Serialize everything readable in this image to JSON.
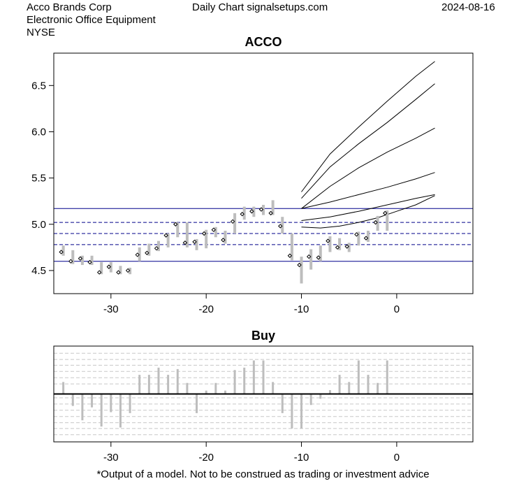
{
  "header": {
    "company": "Acco Brands Corp",
    "industry": "Electronic Office Equipment",
    "exchange": "NYSE",
    "source": "Daily Chart signalsetups.com",
    "date": "2024-08-16"
  },
  "footer": {
    "disclaimer": "*Output of a model. Not to be construed as trading or investment advice"
  },
  "chart_data": [
    {
      "type": "ohlc",
      "title": "ACCO",
      "xlim": [
        -36,
        8
      ],
      "ylim": [
        4.25,
        6.85
      ],
      "x_ticks": [
        -30,
        -20,
        -10,
        0
      ],
      "y_ticks": [
        4.5,
        5.0,
        5.5,
        6.0,
        6.5
      ],
      "y_tick_labels": [
        "4.5",
        "5.0",
        "5.5",
        "6.0",
        "6.5"
      ],
      "colors": {
        "bar": "#bdbdbd",
        "support_line": "#00008b",
        "projection": "#000000"
      },
      "candles": [
        {
          "x": -35,
          "high": 4.77,
          "low": 4.66,
          "close": 4.7
        },
        {
          "x": -34,
          "high": 4.72,
          "low": 4.57,
          "close": 4.6
        },
        {
          "x": -33,
          "high": 4.66,
          "low": 4.56,
          "close": 4.63
        },
        {
          "x": -32,
          "high": 4.66,
          "low": 4.56,
          "close": 4.59
        },
        {
          "x": -31,
          "high": 4.59,
          "low": 4.46,
          "close": 4.48
        },
        {
          "x": -30,
          "high": 4.59,
          "low": 4.48,
          "close": 4.54
        },
        {
          "x": -29,
          "high": 4.55,
          "low": 4.46,
          "close": 4.48
        },
        {
          "x": -28,
          "high": 4.53,
          "low": 4.46,
          "close": 4.5
        },
        {
          "x": -27,
          "high": 4.75,
          "low": 4.6,
          "close": 4.67
        },
        {
          "x": -26,
          "high": 4.79,
          "low": 4.66,
          "close": 4.69
        },
        {
          "x": -25,
          "high": 4.82,
          "low": 4.71,
          "close": 4.74
        },
        {
          "x": -24,
          "high": 4.9,
          "low": 4.75,
          "close": 4.88
        },
        {
          "x": -23,
          "high": 5.02,
          "low": 4.86,
          "close": 5.0
        },
        {
          "x": -22,
          "high": 5.02,
          "low": 4.75,
          "close": 4.8
        },
        {
          "x": -21,
          "high": 4.84,
          "low": 4.72,
          "close": 4.81
        },
        {
          "x": -20,
          "high": 4.94,
          "low": 4.74,
          "close": 4.9
        },
        {
          "x": -19,
          "high": 4.97,
          "low": 4.86,
          "close": 4.94
        },
        {
          "x": -18,
          "high": 4.93,
          "low": 4.79,
          "close": 4.83
        },
        {
          "x": -17,
          "high": 5.12,
          "low": 4.9,
          "close": 5.03
        },
        {
          "x": -16,
          "high": 5.19,
          "low": 5.05,
          "close": 5.11
        },
        {
          "x": -15,
          "high": 5.19,
          "low": 5.08,
          "close": 5.14
        },
        {
          "x": -14,
          "high": 5.21,
          "low": 5.1,
          "close": 5.16
        },
        {
          "x": -13,
          "high": 5.26,
          "low": 5.1,
          "close": 5.12
        },
        {
          "x": -12,
          "high": 5.08,
          "low": 4.9,
          "close": 4.98
        },
        {
          "x": -11,
          "high": 4.9,
          "low": 4.61,
          "close": 4.66
        },
        {
          "x": -10,
          "high": 4.65,
          "low": 4.36,
          "close": 4.56
        },
        {
          "x": -9,
          "high": 4.73,
          "low": 4.51,
          "close": 4.65
        },
        {
          "x": -8,
          "high": 4.77,
          "low": 4.6,
          "close": 4.64
        },
        {
          "x": -7,
          "high": 4.87,
          "low": 4.7,
          "close": 4.82
        },
        {
          "x": -6,
          "high": 4.85,
          "low": 4.72,
          "close": 4.75
        },
        {
          "x": -5,
          "high": 4.8,
          "low": 4.7,
          "close": 4.76
        },
        {
          "x": -4,
          "high": 4.92,
          "low": 4.77,
          "close": 4.89
        },
        {
          "x": -3,
          "high": 4.93,
          "low": 4.81,
          "close": 4.85
        },
        {
          "x": -2,
          "high": 5.09,
          "low": 4.93,
          "close": 5.02
        },
        {
          "x": -1,
          "high": 5.15,
          "low": 4.93,
          "close": 5.12
        }
      ],
      "solid_levels": [
        5.17,
        4.6
      ],
      "dashed_levels": [
        5.02,
        4.9,
        4.78
      ],
      "projections": [
        {
          "x": [
            -10,
            -7,
            -4,
            -1,
            2,
            4
          ],
          "y": [
            5.35,
            5.76,
            6.05,
            6.33,
            6.6,
            6.76
          ]
        },
        {
          "x": [
            -10,
            -7,
            -4,
            -1,
            2,
            4
          ],
          "y": [
            5.28,
            5.62,
            5.87,
            6.1,
            6.35,
            6.52
          ]
        },
        {
          "x": [
            -10,
            -7,
            -4,
            -1,
            2,
            4
          ],
          "y": [
            5.17,
            5.41,
            5.61,
            5.78,
            5.93,
            6.04
          ]
        },
        {
          "x": [
            -10,
            -7,
            -4,
            -1,
            2,
            4
          ],
          "y": [
            5.17,
            5.24,
            5.32,
            5.4,
            5.49,
            5.56
          ]
        },
        {
          "x": [
            -10,
            -7,
            -4,
            -1,
            2,
            4
          ],
          "y": [
            5.04,
            5.08,
            5.14,
            5.21,
            5.28,
            5.32
          ]
        },
        {
          "x": [
            -10,
            -8,
            -6,
            -4,
            -2,
            0,
            2,
            4
          ],
          "y": [
            4.97,
            4.96,
            4.98,
            5.02,
            5.07,
            5.14,
            5.21,
            5.31
          ]
        }
      ]
    },
    {
      "type": "bar",
      "title": "Buy",
      "xlim": [
        -36,
        8
      ],
      "ylim": [
        -1.0,
        1.0
      ],
      "x_ticks": [
        -30,
        -20,
        -10,
        0
      ],
      "gridlines": [
        0.85,
        0.72,
        0.6,
        0.47,
        0.34,
        0.21,
        -0.08,
        -0.21,
        -0.34,
        -0.47,
        -0.6,
        -0.72,
        -0.85
      ],
      "colors": {
        "bar": "#bdbdbd",
        "zero_line": "#000000",
        "grid": "#c8c8c8"
      },
      "x": [
        -35,
        -34,
        -33,
        -32,
        -31,
        -30,
        -29,
        -28,
        -27,
        -26,
        -25,
        -24,
        -23,
        -22,
        -21,
        -20,
        -19,
        -18,
        -17,
        -16,
        -15,
        -14,
        -13,
        -12,
        -11,
        -10,
        -9,
        -8,
        -7,
        -6,
        -5,
        -4,
        -3,
        -2,
        -1
      ],
      "values": [
        0.25,
        -0.25,
        -0.55,
        -0.28,
        -0.68,
        -0.38,
        -0.7,
        -0.4,
        0.4,
        0.4,
        0.55,
        0.4,
        0.52,
        0.23,
        -0.4,
        0.07,
        0.23,
        0.07,
        0.5,
        0.55,
        0.7,
        0.7,
        0.25,
        -0.4,
        -0.72,
        -0.72,
        -0.23,
        -0.1,
        0.08,
        0.4,
        0.25,
        0.7,
        0.4,
        0.23,
        0.7
      ]
    }
  ]
}
